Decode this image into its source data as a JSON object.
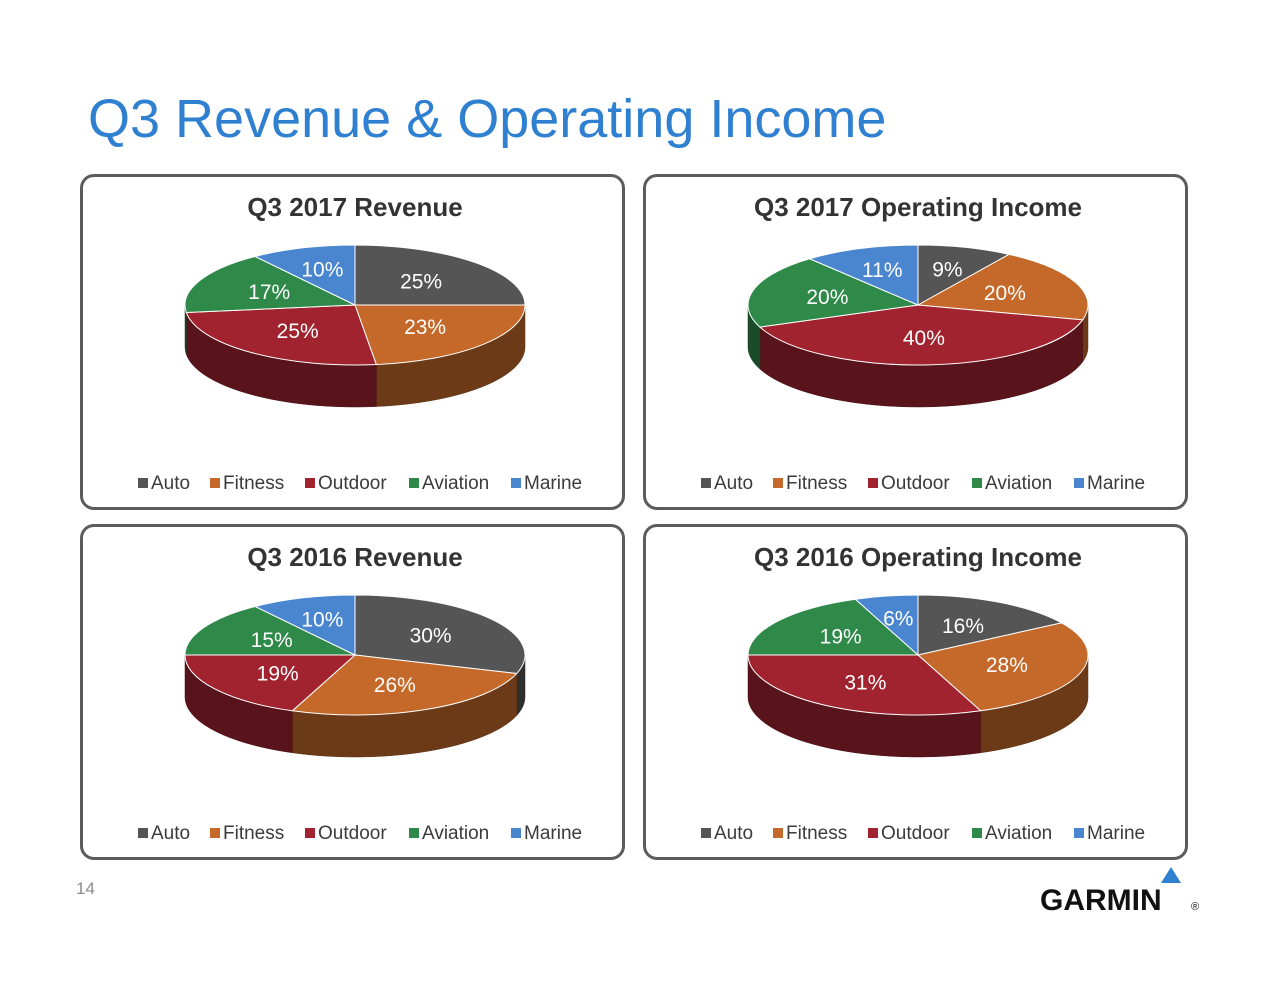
{
  "slide": {
    "title": "Q3 Revenue & Operating Income",
    "page_number": "14",
    "logo_text": "GARMIN",
    "logo_mark": "®"
  },
  "chart_data": [
    {
      "type": "pie",
      "title": "Q3 2017 Revenue",
      "categories": [
        "Auto",
        "Fitness",
        "Outdoor",
        "Aviation",
        "Marine"
      ],
      "values": [
        25,
        23,
        25,
        17,
        10
      ],
      "labels": [
        "25%",
        "23%",
        "25%",
        "17%",
        "10%"
      ],
      "legend_position": "bottom",
      "three_d": true
    },
    {
      "type": "pie",
      "title": "Q3 2017 Operating Income",
      "categories": [
        "Auto",
        "Fitness",
        "Outdoor",
        "Aviation",
        "Marine"
      ],
      "values": [
        9,
        20,
        40,
        20,
        11
      ],
      "labels": [
        "9%",
        "20%",
        "40%",
        "20%",
        "11%"
      ],
      "legend_position": "bottom",
      "three_d": true
    },
    {
      "type": "pie",
      "title": "Q3 2016 Revenue",
      "categories": [
        "Auto",
        "Fitness",
        "Outdoor",
        "Aviation",
        "Marine"
      ],
      "values": [
        30,
        26,
        19,
        15,
        10
      ],
      "labels": [
        "30%",
        "26%",
        "19%",
        "15%",
        "10%"
      ],
      "legend_position": "bottom",
      "three_d": true
    },
    {
      "type": "pie",
      "title": "Q3 2016 Operating Income",
      "categories": [
        "Auto",
        "Fitness",
        "Outdoor",
        "Aviation",
        "Marine"
      ],
      "values": [
        16,
        28,
        31,
        19,
        6
      ],
      "labels": [
        "16%",
        "28%",
        "31%",
        "19%",
        "6%"
      ],
      "legend_position": "bottom",
      "three_d": true
    }
  ],
  "colors": {
    "Auto": "#555555",
    "Fitness": "#c5692a",
    "Outdoor": "#a1232f",
    "Aviation": "#2f8a4a",
    "Marine": "#4a86cf",
    "title": "#2f80d0",
    "border": "#5c5c5c"
  }
}
